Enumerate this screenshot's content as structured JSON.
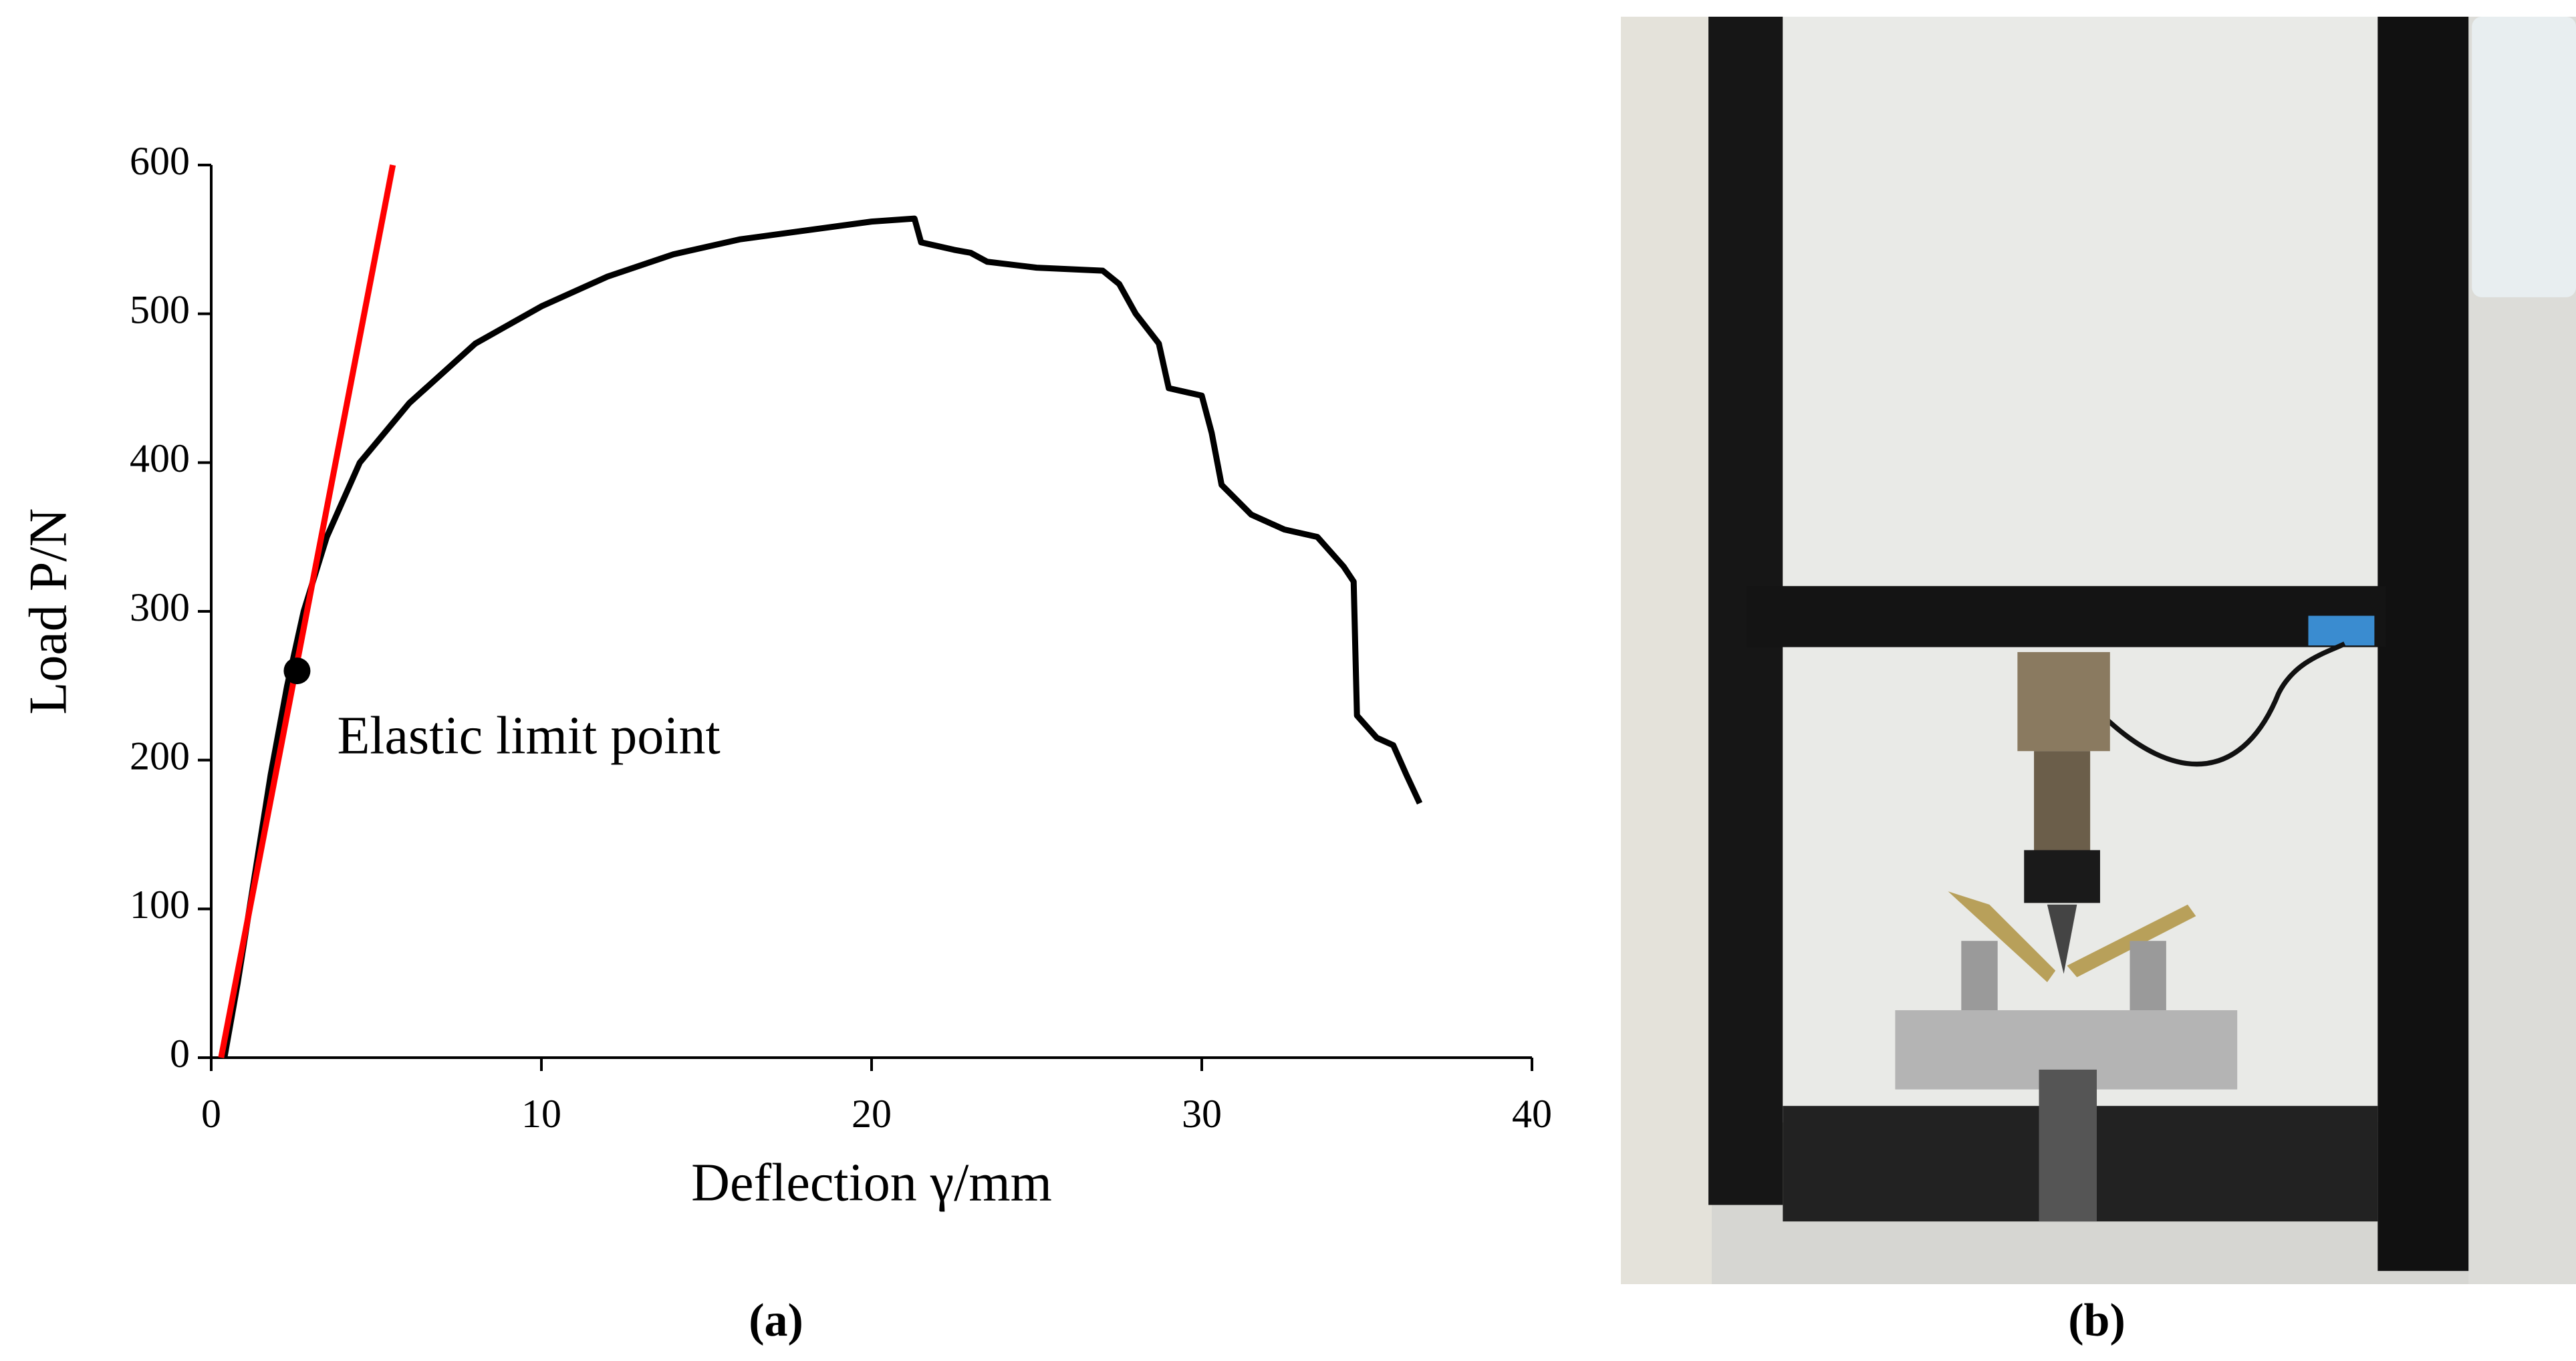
{
  "chart_data": {
    "type": "line",
    "xlabel": "Deflection γ/mm",
    "ylabel": "Load P/N",
    "xlim": [
      0,
      40
    ],
    "ylim": [
      0,
      600
    ],
    "xticks": [
      0,
      10,
      20,
      30,
      40
    ],
    "yticks": [
      0,
      100,
      200,
      300,
      400,
      500,
      600
    ],
    "series": [
      {
        "color": "#000000",
        "x": [
          0.4,
          0.8,
          1.3,
          1.8,
          2.3,
          2.8,
          3.5,
          4.5,
          6,
          8,
          10,
          12,
          14,
          16,
          18,
          20,
          21.3,
          21.5,
          22.5,
          23,
          23.5,
          25,
          27,
          27.5,
          28,
          28.7,
          29,
          30,
          30.3,
          30.6,
          31.5,
          32.5,
          33.5,
          34.3,
          34.6,
          34.7,
          35.3,
          35.8,
          36.2,
          36.6
        ],
        "values": [
          0,
          50,
          120,
          190,
          250,
          300,
          350,
          400,
          440,
          480,
          505,
          525,
          540,
          550,
          556,
          562,
          564,
          548,
          543,
          541,
          535,
          531,
          529,
          520,
          500,
          480,
          450,
          445,
          420,
          385,
          365,
          355,
          350,
          330,
          320,
          230,
          215,
          210,
          190,
          171
        ]
      },
      {
        "color": "#ff0000",
        "x": [
          0.3,
          5.5
        ],
        "values": [
          0,
          600
        ]
      }
    ],
    "annotation": {
      "x": 2.6,
      "y": 260,
      "text": "Elastic limit point"
    }
  },
  "panel_labels": [
    "(a)",
    "(b)"
  ]
}
